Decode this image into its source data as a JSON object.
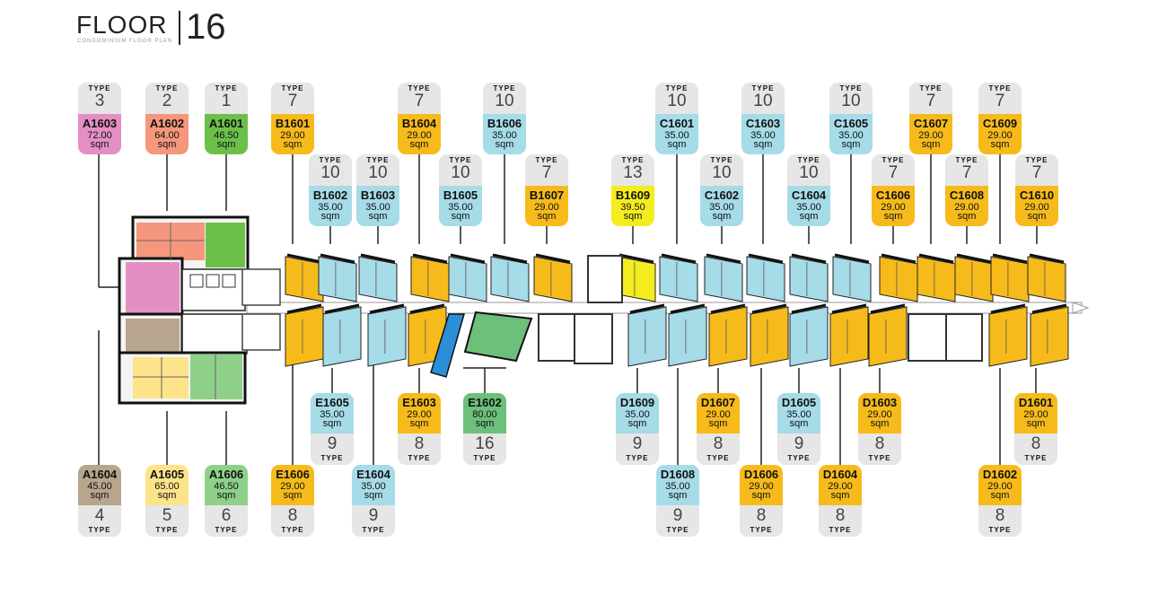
{
  "header": {
    "floor_label": "FLOOR",
    "floor_number": "16",
    "subtitle": "CONDOMINIUM FLOOR PLAN"
  },
  "legend_words": {
    "type": "TYPE",
    "unit": "sqm"
  },
  "colors": {
    "type_1": "#6cc04a",
    "type_2": "#f4977c",
    "type_3": "#e48fc4",
    "type_4": "#b7a58e",
    "type_5": "#fde38a",
    "type_6": "#8ed08a",
    "type_7": "#f6bb1b",
    "type_8": "#f6bb1b",
    "type_9": "#a6dbe8",
    "type_10": "#a6dbe8",
    "type_13": "#f4ec1e",
    "type_16": "#6cc07a",
    "corridor": "#ffffff",
    "wall": "#111111",
    "tag_type_bg": "#e6e6e6"
  },
  "units_top": [
    {
      "code": "A1603",
      "area": "72.00",
      "type": "3"
    },
    {
      "code": "A1602",
      "area": "64.00",
      "type": "2"
    },
    {
      "code": "A1601",
      "area": "46.50",
      "type": "1"
    },
    {
      "code": "B1601",
      "area": "29.00",
      "type": "7"
    },
    {
      "code": "B1602",
      "area": "35.00",
      "type": "10"
    },
    {
      "code": "B1603",
      "area": "35.00",
      "type": "10"
    },
    {
      "code": "B1604",
      "area": "29.00",
      "type": "7"
    },
    {
      "code": "B1605",
      "area": "35.00",
      "type": "10"
    },
    {
      "code": "B1606",
      "area": "35.00",
      "type": "10"
    },
    {
      "code": "B1607",
      "area": "29.00",
      "type": "7"
    },
    {
      "code": "B1609",
      "area": "39.50",
      "type": "13"
    },
    {
      "code": "C1601",
      "area": "35.00",
      "type": "10"
    },
    {
      "code": "C1602",
      "area": "35.00",
      "type": "10"
    },
    {
      "code": "C1603",
      "area": "35.00",
      "type": "10"
    },
    {
      "code": "C1604",
      "area": "35.00",
      "type": "10"
    },
    {
      "code": "C1605",
      "area": "35.00",
      "type": "10"
    },
    {
      "code": "C1606",
      "area": "29.00",
      "type": "7"
    },
    {
      "code": "C1607",
      "area": "29.00",
      "type": "7"
    },
    {
      "code": "C1608",
      "area": "29.00",
      "type": "7"
    },
    {
      "code": "C1609",
      "area": "29.00",
      "type": "7"
    },
    {
      "code": "C1610",
      "area": "29.00",
      "type": "7"
    }
  ],
  "units_bottom": [
    {
      "code": "A1604",
      "area": "45.00",
      "type": "4"
    },
    {
      "code": "A1605",
      "area": "65.00",
      "type": "5"
    },
    {
      "code": "A1606",
      "area": "46.50",
      "type": "6"
    },
    {
      "code": "E1606",
      "area": "29.00",
      "type": "8"
    },
    {
      "code": "E1605",
      "area": "35.00",
      "type": "9"
    },
    {
      "code": "E1604",
      "area": "35.00",
      "type": "9"
    },
    {
      "code": "E1603",
      "area": "29.00",
      "type": "8"
    },
    {
      "code": "E1602",
      "area": "80.00",
      "type": "16"
    },
    {
      "code": "D1609",
      "area": "35.00",
      "type": "9"
    },
    {
      "code": "D1608",
      "area": "35.00",
      "type": "9"
    },
    {
      "code": "D1607",
      "area": "29.00",
      "type": "8"
    },
    {
      "code": "D1606",
      "area": "29.00",
      "type": "8"
    },
    {
      "code": "D1605",
      "area": "35.00",
      "type": "9"
    },
    {
      "code": "D1604",
      "area": "29.00",
      "type": "8"
    },
    {
      "code": "D1603",
      "area": "29.00",
      "type": "8"
    },
    {
      "code": "D1602",
      "area": "29.00",
      "type": "8"
    },
    {
      "code": "D1601",
      "area": "29.00",
      "type": "8"
    }
  ]
}
